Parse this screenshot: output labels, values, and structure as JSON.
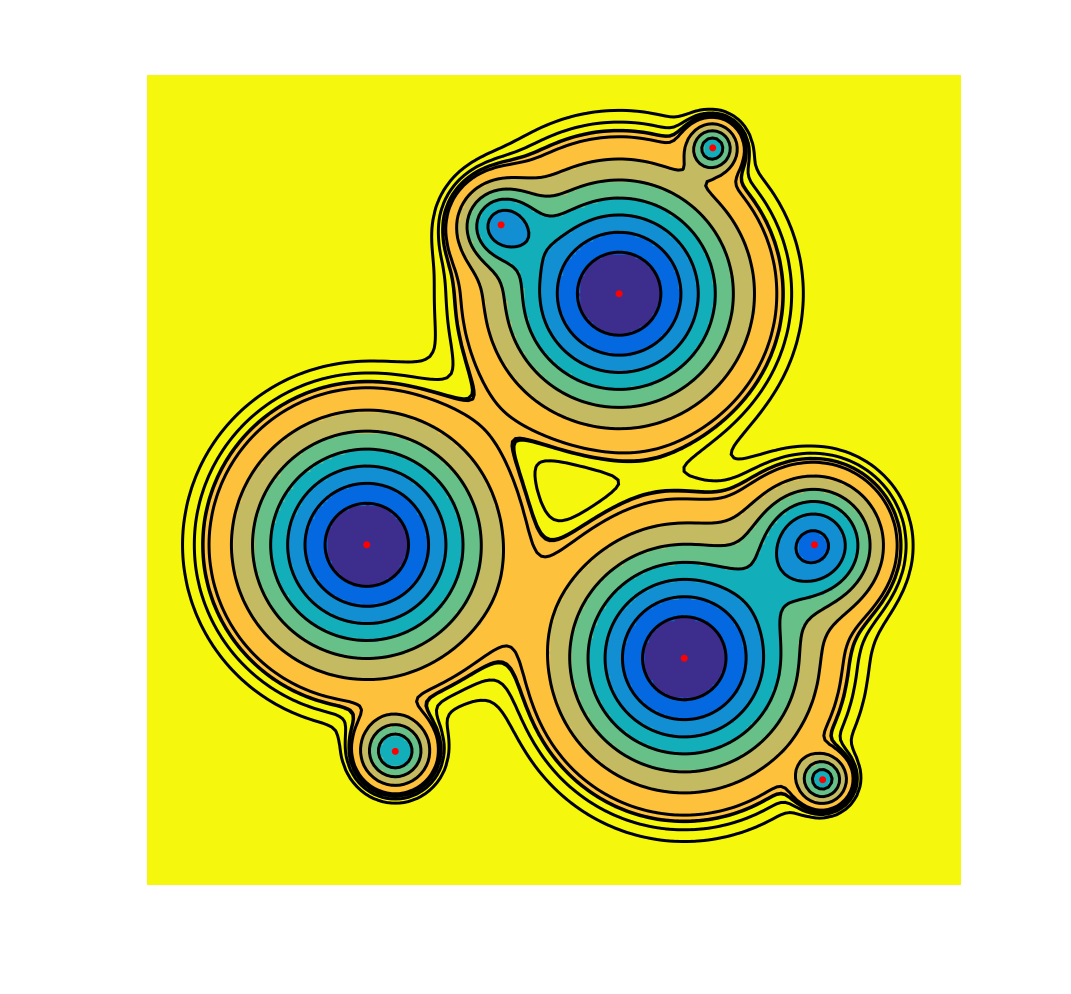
{
  "chart_data": {
    "type": "contour",
    "title": "",
    "xlabel": "",
    "ylabel": "",
    "axes_visible": false,
    "grid": false,
    "legend": "none",
    "colormap": "parula",
    "contour_lines": "black",
    "marker_color": "#ff0000",
    "background_level_color": "#f5f80d",
    "level_colors": [
      "#3d2e8e",
      "#0468e0",
      "#118fd2",
      "#12afbb",
      "#66c088",
      "#c4ba62",
      "#fec13b",
      "#f5f80d"
    ],
    "centers": [
      {
        "x": 0.58,
        "y": 0.27,
        "depth": 3.0,
        "width": 0.08
      },
      {
        "x": 0.27,
        "y": 0.58,
        "depth": 3.0,
        "width": 0.08
      },
      {
        "x": 0.66,
        "y": 0.72,
        "depth": 3.0,
        "width": 0.08
      },
      {
        "x": 0.82,
        "y": 0.58,
        "depth": 2.0,
        "width": 0.045
      },
      {
        "x": 0.435,
        "y": 0.185,
        "depth": 1.4,
        "width": 0.03
      },
      {
        "x": 0.305,
        "y": 0.835,
        "depth": 1.4,
        "width": 0.025
      },
      {
        "x": 0.695,
        "y": 0.09,
        "depth": 1.2,
        "width": 0.018
      },
      {
        "x": 0.83,
        "y": 0.87,
        "depth": 1.2,
        "width": 0.018
      }
    ]
  }
}
